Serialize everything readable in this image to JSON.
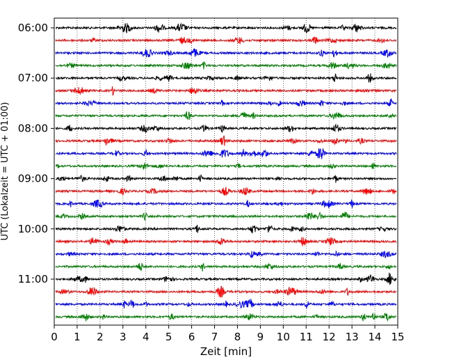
{
  "chart_data": {
    "type": "line",
    "title": "",
    "xlabel": "Zeit  [min]",
    "ylabel": "UTC (Lokalzeit = UTC + 01:00)",
    "xlim": [
      0,
      15
    ],
    "x_ticks": [
      "0",
      "1",
      "2",
      "3",
      "4",
      "5",
      "6",
      "7",
      "8",
      "9",
      "10",
      "11",
      "12",
      "13",
      "14",
      "15"
    ],
    "y_ticks": [
      "06:00",
      "07:00",
      "08:00",
      "09:00",
      "10:00",
      "11:00"
    ],
    "grid": "vertical dotted at each minute",
    "trace_interval_min": 15,
    "trace_color_cycle": [
      "#000000",
      "#ff0000",
      "#0000ff",
      "#008000"
    ],
    "traces": [
      {
        "start": "06:00"
      },
      {
        "start": "06:15"
      },
      {
        "start": "06:30"
      },
      {
        "start": "06:45"
      },
      {
        "start": "07:00"
      },
      {
        "start": "07:15"
      },
      {
        "start": "07:30"
      },
      {
        "start": "07:45"
      },
      {
        "start": "08:00"
      },
      {
        "start": "08:15"
      },
      {
        "start": "08:30"
      },
      {
        "start": "08:45"
      },
      {
        "start": "09:00"
      },
      {
        "start": "09:15"
      },
      {
        "start": "09:30"
      },
      {
        "start": "09:45"
      },
      {
        "start": "10:00"
      },
      {
        "start": "10:15"
      },
      {
        "start": "10:30"
      },
      {
        "start": "10:45"
      },
      {
        "start": "11:00"
      },
      {
        "start": "11:15"
      },
      {
        "start": "11:30"
      },
      {
        "start": "11:45"
      }
    ]
  }
}
